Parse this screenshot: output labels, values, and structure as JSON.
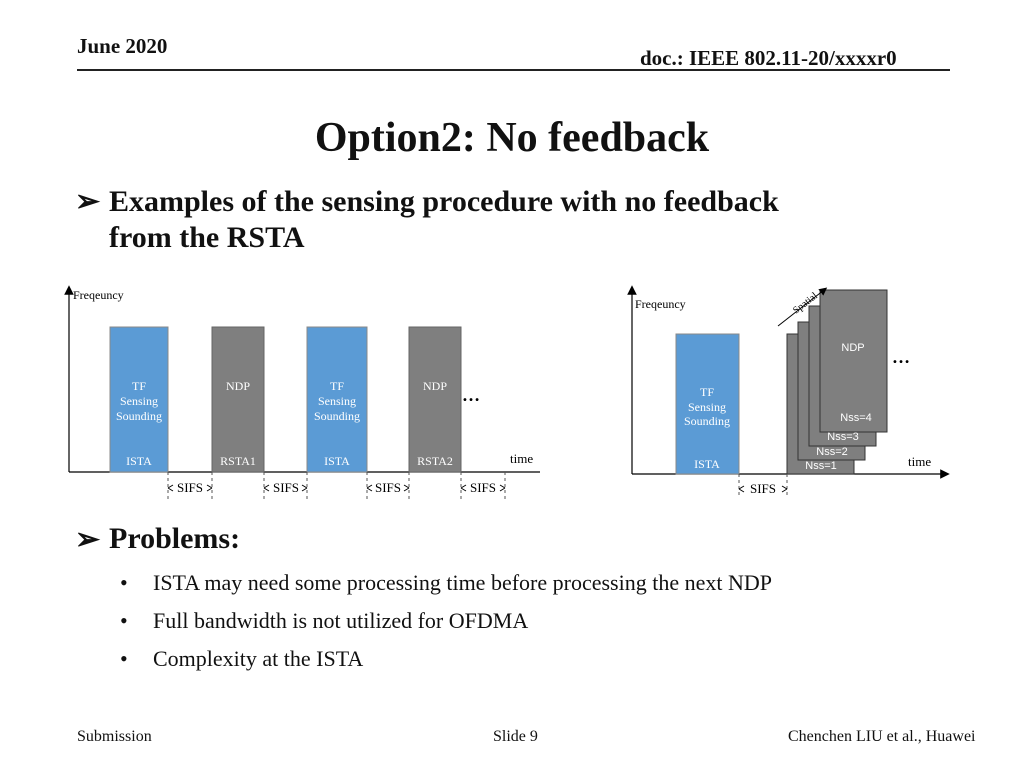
{
  "header": {
    "date": "June 2020",
    "doc": "doc.: IEEE 802.11-20/xxxxr0"
  },
  "title": "Option2: No feedback",
  "bullet1": {
    "line1": "Examples of the sensing procedure with no feedback",
    "line2": "from the RSTA"
  },
  "diagram_left": {
    "ylabel": "Freqeuncy",
    "xlabel": "time",
    "ellipsis": "…",
    "blocks": [
      {
        "lines": [
          "TF",
          "Sensing",
          "Sounding"
        ],
        "bottom": "ISTA",
        "color": "#5b9bd5"
      },
      {
        "lines": [
          "NDP"
        ],
        "bottom": "RSTA1",
        "color": "#7f7f7f"
      },
      {
        "lines": [
          "TF",
          "Sensing",
          "Sounding"
        ],
        "bottom": "ISTA",
        "color": "#5b9bd5"
      },
      {
        "lines": [
          "NDP"
        ],
        "bottom": "RSTA2",
        "color": "#7f7f7f"
      }
    ],
    "sifs": [
      "SIFS",
      "SIFS",
      "SIFS",
      "SIFS"
    ]
  },
  "diagram_right": {
    "ylabel": "Freqeuncy",
    "xlabel": "time",
    "spatial": "Spatial",
    "ellipsis": "…",
    "tf": {
      "lines": [
        "TF",
        "Sensing",
        "Sounding"
      ],
      "bottom": "ISTA"
    },
    "ndp": "NDP",
    "nss": [
      "Nss=1",
      "Nss=2",
      "Nss=3",
      "Nss=4"
    ],
    "sifs": "SIFS"
  },
  "bullet2": {
    "heading": "Problems:",
    "items": [
      "ISTA may need some processing time before processing the next NDP",
      "Full bandwidth is not utilized for OFDMA",
      "Complexity at the ISTA"
    ]
  },
  "footer": {
    "left": "Submission",
    "center": "Slide 9",
    "right": "Chenchen LIU et al., Huawei"
  },
  "colors": {
    "blue": "#5b9bd5",
    "gray": "#7f7f7f"
  }
}
